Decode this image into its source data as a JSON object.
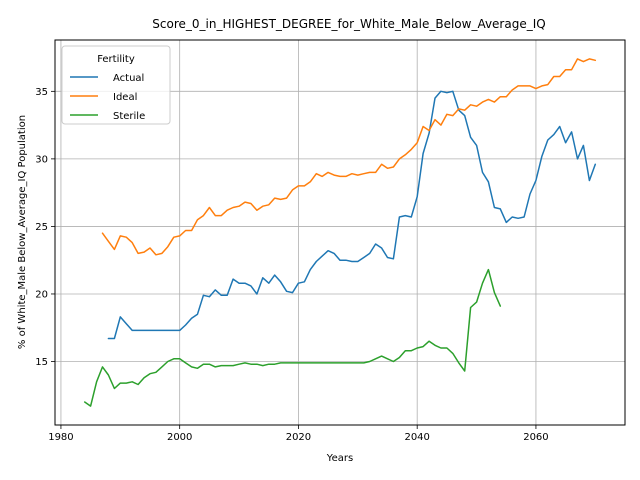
{
  "chart_data": {
    "type": "line",
    "title": "Score_0_in_HIGHEST_DEGREE_for_White_Male_Below_Average_IQ",
    "xlabel": "Years",
    "ylabel": "% of White_Male Below_Average_IQ Population",
    "xlim": [
      1979,
      2075
    ],
    "ylim": [
      10.3,
      38.8
    ],
    "xticks": [
      1980,
      2000,
      2020,
      2040,
      2060
    ],
    "yticks": [
      15,
      20,
      25,
      30,
      35
    ],
    "grid": true,
    "legend": {
      "title": "Fertility",
      "placement": "top-left"
    },
    "series": [
      {
        "name": "Actual",
        "color": "#1f77b4",
        "x": [
          1988,
          1989,
          1990,
          1991,
          1992,
          1993,
          1994,
          1995,
          1996,
          1997,
          1998,
          1999,
          2000,
          2001,
          2002,
          2003,
          2004,
          2005,
          2006,
          2007,
          2008,
          2009,
          2010,
          2011,
          2012,
          2013,
          2014,
          2015,
          2016,
          2017,
          2018,
          2019,
          2020,
          2021,
          2022,
          2023,
          2024,
          2025,
          2026,
          2027,
          2028,
          2029,
          2030,
          2031,
          2032,
          2033,
          2034,
          2035,
          2036,
          2037,
          2038,
          2039,
          2040,
          2041,
          2042,
          2043,
          2044,
          2045,
          2046,
          2047,
          2048,
          2049,
          2050,
          2051,
          2052,
          2053,
          2054,
          2055,
          2056,
          2057,
          2058,
          2059,
          2060,
          2061,
          2062,
          2063,
          2064,
          2065,
          2066,
          2067,
          2068,
          2069,
          2070
        ],
        "y": [
          16.7,
          16.7,
          18.3,
          17.8,
          17.3,
          17.3,
          17.3,
          17.3,
          17.3,
          17.3,
          17.3,
          17.3,
          17.3,
          17.7,
          18.2,
          18.5,
          19.9,
          19.8,
          20.3,
          19.9,
          19.9,
          21.1,
          20.8,
          20.8,
          20.6,
          20.0,
          21.2,
          20.8,
          21.4,
          20.9,
          20.2,
          20.1,
          20.8,
          20.9,
          21.8,
          22.4,
          22.8,
          23.2,
          23.0,
          22.5,
          22.5,
          22.4,
          22.4,
          22.7,
          23.0,
          23.7,
          23.4,
          22.7,
          22.6,
          25.7,
          25.8,
          25.7,
          27.2,
          30.4,
          31.9,
          34.5,
          35.0,
          34.9,
          35.0,
          33.6,
          33.2,
          31.6,
          31.0,
          29.0,
          28.3,
          26.4,
          26.3,
          25.3,
          25.7,
          25.6,
          25.7,
          27.4,
          28.4,
          30.2,
          31.4,
          31.8,
          32.4,
          31.2,
          32.0,
          30.0,
          31.0,
          28.4,
          29.6
        ]
      },
      {
        "name": "Ideal",
        "color": "#ff7f0e",
        "x": [
          1987,
          1988,
          1989,
          1990,
          1991,
          1992,
          1993,
          1994,
          1995,
          1996,
          1997,
          1998,
          1999,
          2000,
          2001,
          2002,
          2003,
          2004,
          2005,
          2006,
          2007,
          2008,
          2009,
          2010,
          2011,
          2012,
          2013,
          2014,
          2015,
          2016,
          2017,
          2018,
          2019,
          2020,
          2021,
          2022,
          2023,
          2024,
          2025,
          2026,
          2027,
          2028,
          2029,
          2030,
          2031,
          2032,
          2033,
          2034,
          2035,
          2036,
          2037,
          2038,
          2039,
          2040,
          2041,
          2042,
          2043,
          2044,
          2045,
          2046,
          2047,
          2048,
          2049,
          2050,
          2051,
          2052,
          2053,
          2054,
          2055,
          2056,
          2057,
          2058,
          2059,
          2060,
          2061,
          2062,
          2063,
          2064,
          2065,
          2066,
          2067,
          2068,
          2069,
          2070
        ],
        "y": [
          24.5,
          23.9,
          23.3,
          24.3,
          24.2,
          23.8,
          23.0,
          23.1,
          23.4,
          22.9,
          23.0,
          23.5,
          24.2,
          24.3,
          24.7,
          24.7,
          25.5,
          25.8,
          26.4,
          25.8,
          25.8,
          26.2,
          26.4,
          26.5,
          26.8,
          26.7,
          26.2,
          26.5,
          26.6,
          27.1,
          27.0,
          27.1,
          27.7,
          28.0,
          28.0,
          28.3,
          28.9,
          28.7,
          29.0,
          28.8,
          28.7,
          28.7,
          28.9,
          28.8,
          28.9,
          29.0,
          29.0,
          29.6,
          29.3,
          29.4,
          30.0,
          30.3,
          30.7,
          31.2,
          32.4,
          32.1,
          32.9,
          32.5,
          33.3,
          33.2,
          33.7,
          33.6,
          34.0,
          33.9,
          34.2,
          34.4,
          34.2,
          34.6,
          34.6,
          35.1,
          35.4,
          35.4,
          35.4,
          35.2,
          35.4,
          35.5,
          36.1,
          36.1,
          36.6,
          36.6,
          37.4,
          37.2,
          37.4,
          37.3
        ]
      },
      {
        "name": "Sterile",
        "color": "#2ca02c",
        "x": [
          1984,
          1985,
          1986,
          1987,
          1988,
          1989,
          1990,
          1991,
          1992,
          1993,
          1994,
          1995,
          1996,
          1997,
          1998,
          1999,
          2000,
          2001,
          2002,
          2003,
          2004,
          2005,
          2006,
          2007,
          2008,
          2009,
          2010,
          2011,
          2012,
          2013,
          2014,
          2015,
          2016,
          2017,
          2018,
          2019,
          2020,
          2021,
          2022,
          2023,
          2024,
          2025,
          2026,
          2027,
          2028,
          2029,
          2030,
          2031,
          2032,
          2033,
          2034,
          2035,
          2036,
          2037,
          2038,
          2039,
          2040,
          2041,
          2042,
          2043,
          2044,
          2045,
          2046,
          2047,
          2048,
          2049,
          2050,
          2051,
          2052,
          2053,
          2054
        ],
        "y": [
          12.0,
          11.7,
          13.5,
          14.6,
          14.0,
          13.0,
          13.4,
          13.4,
          13.5,
          13.3,
          13.8,
          14.1,
          14.2,
          14.6,
          15.0,
          15.2,
          15.2,
          14.9,
          14.6,
          14.5,
          14.8,
          14.8,
          14.6,
          14.7,
          14.7,
          14.7,
          14.8,
          14.9,
          14.8,
          14.8,
          14.7,
          14.8,
          14.8,
          14.9,
          14.9,
          14.9,
          14.9,
          14.9,
          14.9,
          14.9,
          14.9,
          14.9,
          14.9,
          14.9,
          14.9,
          14.9,
          14.9,
          14.9,
          15.0,
          15.2,
          15.4,
          15.2,
          15.0,
          15.3,
          15.8,
          15.8,
          16.0,
          16.1,
          16.5,
          16.2,
          16.0,
          16.0,
          15.6,
          14.9,
          14.3,
          19.0,
          19.4,
          20.8,
          21.8,
          20.1,
          19.1
        ]
      }
    ]
  }
}
